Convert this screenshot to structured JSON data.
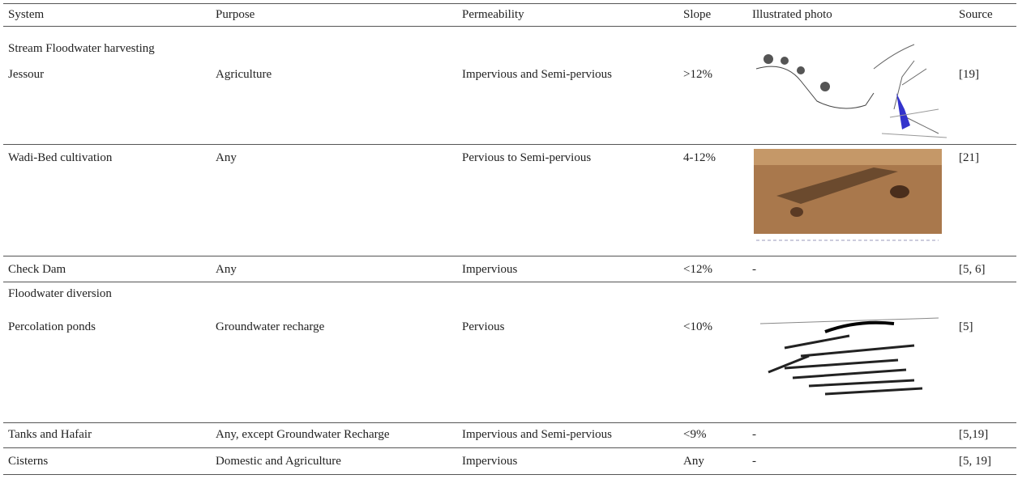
{
  "table": {
    "header": [
      "System",
      "Purpose",
      "Permeability",
      "Slope",
      "Illustrated photo",
      "Source"
    ],
    "rows": [
      {
        "group": "Stream Floodwater harvesting"
      },
      {
        "system": "Jessour",
        "purpose": "Agriculture",
        "permeability": "Impervious and Semi-pervious",
        "slope": ">12%",
        "source": "[19]"
      },
      {
        "system": "Wadi-Bed cultivation",
        "purpose": "Any",
        "permeability": "Pervious to Semi-pervious",
        "slope": "4-12%",
        "source": "[21]"
      },
      {
        "system": "Check Dam",
        "purpose": "Any",
        "permeability": "Impervious",
        "slope": "<12%",
        "photo": "-",
        "source": "[5, 6]"
      },
      {
        "group": "Floodwater diversion"
      },
      {
        "system": "Percolation ponds",
        "purpose": "Groundwater recharge",
        "permeability": "Pervious",
        "slope": "<10%",
        "source": "[5]"
      },
      {
        "system": "Tanks and Hafair",
        "purpose": "Any, except Groundwater Recharge",
        "permeability": "Impervious and Semi-pervious",
        "slope": "<9%",
        "photo": "-",
        "source": "[5,19]"
      },
      {
        "system": "Cisterns",
        "purpose": "Domestic and Agriculture",
        "permeability": "Impervious",
        "slope": "Any",
        "photo": "-",
        "source": "[5, 19]"
      }
    ]
  }
}
